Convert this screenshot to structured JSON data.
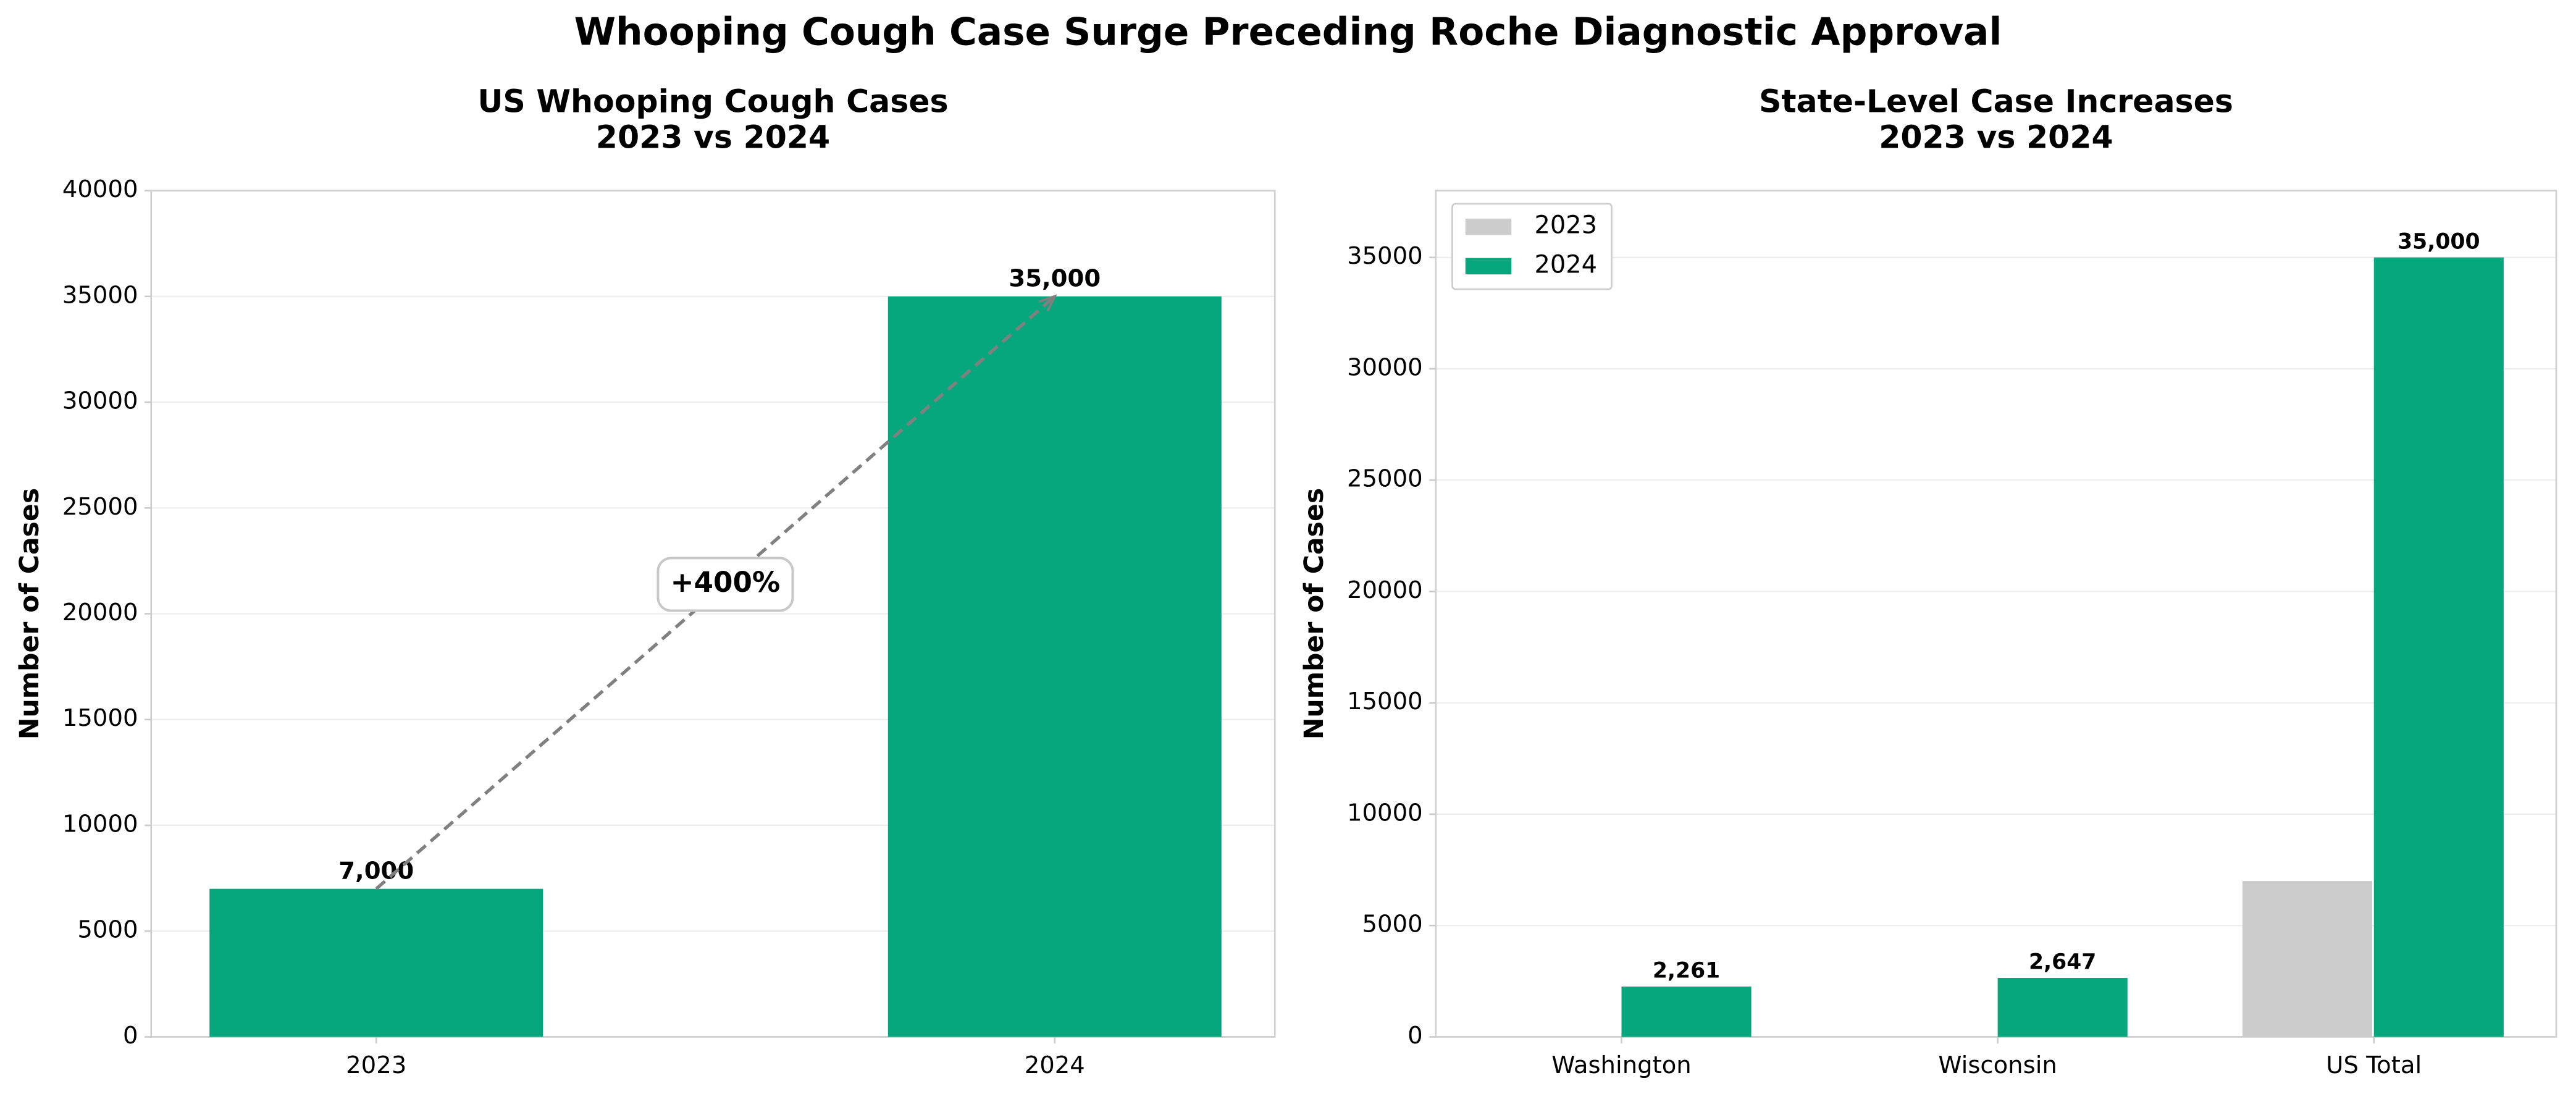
{
  "suptitle": "Whooping Cough Case Surge Preceding Roche Diagnostic Approval",
  "chart_data": [
    {
      "type": "bar",
      "title": "US Whooping Cough Cases\n2023 vs 2024",
      "ylabel": "Number of Cases",
      "categories": [
        "2023",
        "2024"
      ],
      "values": [
        7000,
        35000
      ],
      "value_labels": [
        "7,000",
        "35,000"
      ],
      "color": "#06a77d",
      "ylim": [
        0,
        40000
      ],
      "yticks": [
        0,
        5000,
        10000,
        15000,
        20000,
        25000,
        30000,
        35000,
        40000
      ],
      "grid": true,
      "annotation": "+400%"
    },
    {
      "type": "grouped_bar",
      "title": "State-Level Case Increases\n2023 vs 2024",
      "ylabel": "Number of Cases",
      "categories": [
        "Washington",
        "Wisconsin",
        "US Total"
      ],
      "series": [
        {
          "name": "2023",
          "color": "#cccccc",
          "values": [
            0,
            0,
            7000
          ]
        },
        {
          "name": "2024",
          "color": "#06a77d",
          "values": [
            2261,
            2647,
            35000
          ],
          "value_labels": [
            "2,261",
            "2,647",
            "35,000"
          ]
        }
      ],
      "ylim": [
        0,
        38000
      ],
      "yticks": [
        0,
        5000,
        10000,
        15000,
        20000,
        25000,
        30000,
        35000
      ],
      "grid": true,
      "legend": "upper-left"
    }
  ]
}
